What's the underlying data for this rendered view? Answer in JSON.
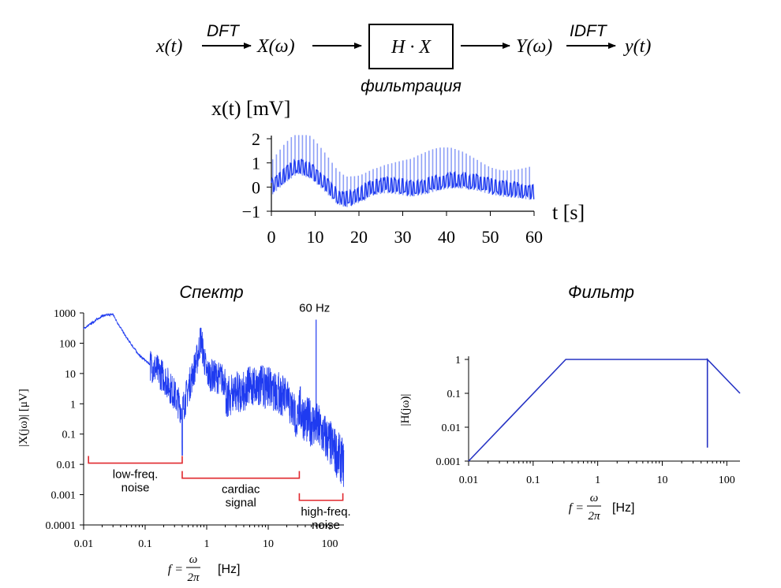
{
  "pipeline": {
    "input": "x(t)",
    "dft": "DFT",
    "spectrum_in": "X(ω)",
    "box": "H · X",
    "box_caption": "фильтрация",
    "spectrum_out": "Y(ω)",
    "idft": "IDFT",
    "output": "y(t)"
  },
  "colors": {
    "signal": "#1f3bf0",
    "signal_light": "#8fa0f7",
    "filter": "#2633c4",
    "bracket": "#e0282e",
    "axis": "#000000"
  },
  "chart_data": [
    {
      "id": "signal",
      "type": "line",
      "title": "x(t)  [mV]",
      "xlabel": "t  [s]",
      "xlim": [
        0,
        60
      ],
      "ylim": [
        -1,
        2
      ],
      "x_ticks": [
        0,
        10,
        20,
        30,
        40,
        50,
        60
      ],
      "y_ticks": [
        -1,
        0,
        1,
        2
      ],
      "x_tick_labels": [
        "0",
        "10",
        "20",
        "30",
        "40",
        "50",
        "60"
      ],
      "y_tick_labels": [
        "−1",
        "0",
        "1",
        "2"
      ],
      "baseline": {
        "t": [
          0,
          3,
          6,
          9,
          12,
          15,
          17,
          20,
          23,
          26,
          29,
          32,
          35,
          38,
          41,
          44,
          47,
          50,
          53,
          56,
          58,
          60
        ],
        "v": [
          0.0,
          0.5,
          0.9,
          0.7,
          0.2,
          -0.35,
          -0.5,
          -0.3,
          0.0,
          0.1,
          0.05,
          -0.05,
          0.05,
          0.2,
          0.3,
          0.3,
          0.2,
          0.05,
          -0.05,
          -0.1,
          -0.15,
          -0.2
        ]
      },
      "beat_period_s": 0.85,
      "beat_peak_mv": 1.15
    },
    {
      "id": "spectrum",
      "type": "line",
      "title": "Спектр",
      "ylabel": "|X(jω)|  [μV]",
      "xlabel": "f = ω/2π  [Hz]",
      "xlabel_parts": {
        "f": "f =",
        "num": "ω",
        "den": "2π",
        "unit": "[Hz]"
      },
      "log_x": true,
      "log_y": true,
      "xlim": [
        0.01,
        170
      ],
      "ylim": [
        0.0001,
        1000
      ],
      "x_ticks": [
        0.01,
        0.1,
        1,
        10,
        100
      ],
      "x_tick_labels": [
        "0.01",
        "0.1",
        "1",
        "10",
        "100"
      ],
      "y_ticks": [
        0.0001,
        0.001,
        0.01,
        0.1,
        1,
        10,
        100,
        1000
      ],
      "y_tick_labels": [
        "0.0001",
        "0.001",
        "0.01",
        "0.1",
        "1",
        "10",
        "100",
        "1000"
      ],
      "envelope": {
        "f": [
          0.01,
          0.02,
          0.03,
          0.035,
          0.05,
          0.08,
          0.12,
          0.2,
          0.3,
          0.4,
          0.5,
          0.7,
          0.8,
          1,
          2,
          4,
          6,
          10,
          15,
          20,
          30,
          40,
          60,
          100,
          170
        ],
        "amp": [
          300,
          800,
          900,
          500,
          150,
          40,
          20,
          8,
          2,
          0.6,
          3,
          30,
          150,
          10,
          6,
          10,
          15,
          12,
          8,
          5,
          1,
          0.3,
          0.2,
          0.05,
          0.01
        ]
      },
      "peak_60hz": {
        "f": 60,
        "amp": 600,
        "label": "60 Hz"
      },
      "annotations": [
        {
          "label": [
            "low-freq.",
            "noise"
          ],
          "f_range": [
            0.012,
            0.4
          ],
          "level": 0.011
        },
        {
          "label": [
            "cardiac",
            "signal"
          ],
          "f_range": [
            0.4,
            32
          ],
          "level": 0.0035
        },
        {
          "label": [
            "high-freq.",
            "noise"
          ],
          "f_range": [
            32,
            170
          ],
          "level": 0.00065
        }
      ]
    },
    {
      "id": "filter",
      "type": "line",
      "title": "Фильтр",
      "ylabel": "|H(jω)|",
      "xlabel": "f = ω/2π  [Hz]",
      "xlabel_parts": {
        "f": "f =",
        "num": "ω",
        "den": "2π",
        "unit": "[Hz]"
      },
      "log_x": true,
      "log_y": true,
      "xlim": [
        0.01,
        160
      ],
      "ylim": [
        0.001,
        1
      ],
      "x_ticks": [
        0.01,
        0.1,
        1,
        10,
        100
      ],
      "x_tick_labels": [
        "0.01",
        "0.1",
        "1",
        "10",
        "100"
      ],
      "y_ticks": [
        0.001,
        0.01,
        0.1,
        1
      ],
      "y_tick_labels": [
        "0.001",
        "0.01",
        "0.1",
        "1"
      ],
      "response": {
        "f": [
          0.01,
          0.32,
          50,
          50,
          50,
          160
        ],
        "h": [
          0.001,
          1,
          1,
          0.0025,
          1,
          0.1
        ]
      }
    }
  ]
}
